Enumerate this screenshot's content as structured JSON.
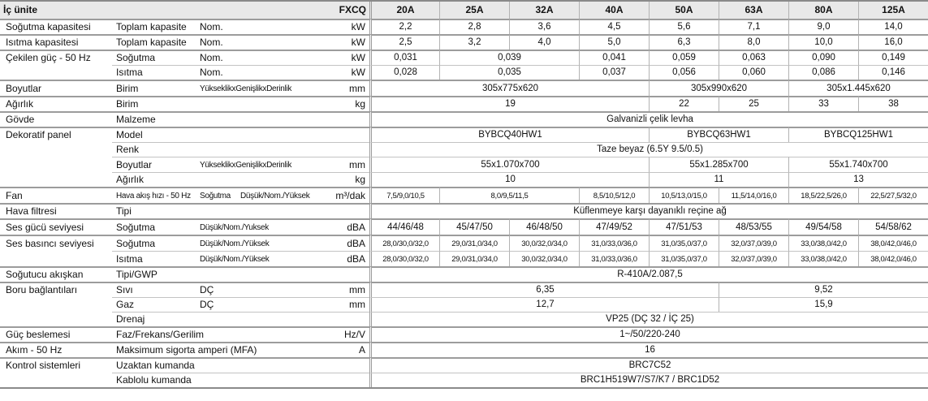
{
  "header": {
    "title": "İç ünite",
    "series": "FXCQ",
    "columns": [
      "20A",
      "25A",
      "32A",
      "40A",
      "50A",
      "63A",
      "80A",
      "125A"
    ]
  },
  "colors": {
    "header_bg": "#e9e9e9",
    "border_light": "#b3b3b3",
    "border_group": "#9c9c9c",
    "border_outer": "#8a8a8a"
  },
  "rows": [
    {
      "cat": "Soğutma kapasitesi",
      "sub": "Toplam kapasite",
      "qual": "Nom.",
      "qual2": "",
      "unit": "kW",
      "sep": "group",
      "tight": false,
      "cells": [
        {
          "t": "2,2",
          "s": 1
        },
        {
          "t": "2,8",
          "s": 1
        },
        {
          "t": "3,6",
          "s": 1
        },
        {
          "t": "4,5",
          "s": 1
        },
        {
          "t": "5,6",
          "s": 1
        },
        {
          "t": "7,1",
          "s": 1
        },
        {
          "t": "9,0",
          "s": 1
        },
        {
          "t": "14,0",
          "s": 1
        }
      ]
    },
    {
      "cat": "Isıtma kapasitesi",
      "sub": "Toplam kapasite",
      "qual": "Nom.",
      "qual2": "",
      "unit": "kW",
      "sep": "group",
      "tight": false,
      "cells": [
        {
          "t": "2,5",
          "s": 1
        },
        {
          "t": "3,2",
          "s": 1
        },
        {
          "t": "4,0",
          "s": 1
        },
        {
          "t": "5,0",
          "s": 1
        },
        {
          "t": "6,3",
          "s": 1
        },
        {
          "t": "8,0",
          "s": 1
        },
        {
          "t": "10,0",
          "s": 1
        },
        {
          "t": "16,0",
          "s": 1
        }
      ]
    },
    {
      "cat": "Çekilen güç - 50 Hz",
      "sub": "Soğutma",
      "qual": "Nom.",
      "qual2": "",
      "unit": "kW",
      "sep": "group",
      "tight": false,
      "cells": [
        {
          "t": "0,031",
          "s": 1
        },
        {
          "t": "0,039",
          "s": 2
        },
        {
          "t": "0,041",
          "s": 1
        },
        {
          "t": "0,059",
          "s": 1
        },
        {
          "t": "0,063",
          "s": 1
        },
        {
          "t": "0,090",
          "s": 1
        },
        {
          "t": "0,149",
          "s": 1
        }
      ]
    },
    {
      "cat": "",
      "sub": "Isıtma",
      "qual": "Nom.",
      "qual2": "",
      "unit": "kW",
      "sep": "sub",
      "tight": false,
      "cells": [
        {
          "t": "0,028",
          "s": 1
        },
        {
          "t": "0,035",
          "s": 2
        },
        {
          "t": "0,037",
          "s": 1
        },
        {
          "t": "0,056",
          "s": 1
        },
        {
          "t": "0,060",
          "s": 1
        },
        {
          "t": "0,086",
          "s": 1
        },
        {
          "t": "0,146",
          "s": 1
        }
      ]
    },
    {
      "cat": "Boyutlar",
      "sub": "Birim",
      "qual": "YükseklikxGenişlikxDerinlik",
      "qual2": "",
      "unit": "mm",
      "sep": "group",
      "tight": false,
      "cells": [
        {
          "t": "305x775x620",
          "s": 4
        },
        {
          "t": "305x990x620",
          "s": 2
        },
        {
          "t": "305x1.445x620",
          "s": 2
        }
      ]
    },
    {
      "cat": "Ağırlık",
      "sub": "Birim",
      "qual": "",
      "qual2": "",
      "unit": "kg",
      "sep": "group",
      "tight": false,
      "cells": [
        {
          "t": "19",
          "s": 4
        },
        {
          "t": "22",
          "s": 1
        },
        {
          "t": "25",
          "s": 1
        },
        {
          "t": "33",
          "s": 1
        },
        {
          "t": "38",
          "s": 1
        }
      ]
    },
    {
      "cat": "Gövde",
      "sub": "Malzeme",
      "qual": "",
      "qual2": "",
      "unit": "",
      "sep": "group",
      "tight": false,
      "cells": [
        {
          "t": "Galvanizli çelik levha",
          "s": 8
        }
      ]
    },
    {
      "cat": "Dekoratif panel",
      "sub": "Model",
      "qual": "",
      "qual2": "",
      "unit": "",
      "sep": "group",
      "tight": false,
      "cells": [
        {
          "t": "BYBCQ40HW1",
          "s": 4
        },
        {
          "t": "BYBCQ63HW1",
          "s": 2
        },
        {
          "t": "BYBCQ125HW1",
          "s": 2
        }
      ]
    },
    {
      "cat": "",
      "sub": "Renk",
      "qual": "",
      "qual2": "",
      "unit": "",
      "sep": "sub",
      "tight": false,
      "cells": [
        {
          "t": "Taze beyaz (6.5Y 9.5/0.5)",
          "s": 8
        }
      ]
    },
    {
      "cat": "",
      "sub": "Boyutlar",
      "qual": "YükseklikxGenişlikxDerinlik",
      "qual2": "",
      "unit": "mm",
      "sep": "sub",
      "tight": false,
      "cells": [
        {
          "t": "55x1.070x700",
          "s": 4
        },
        {
          "t": "55x1.285x700",
          "s": 2
        },
        {
          "t": "55x1.740x700",
          "s": 2
        }
      ]
    },
    {
      "cat": "",
      "sub": "Ağırlık",
      "qual": "",
      "qual2": "",
      "unit": "kg",
      "sep": "sub",
      "tight": false,
      "cells": [
        {
          "t": "10",
          "s": 4
        },
        {
          "t": "11",
          "s": 2
        },
        {
          "t": "13",
          "s": 2
        }
      ]
    },
    {
      "cat": "Fan",
      "sub": "Hava akış hızı - 50 Hz",
      "qual": "Soğutma",
      "qual2": "Düşük/Nom./Yüksek",
      "unit": "m³/dak",
      "sep": "group",
      "tight": true,
      "cells": [
        {
          "t": "7,5/9,0/10,5",
          "s": 1
        },
        {
          "t": "8,0/9,5/11,5",
          "s": 2
        },
        {
          "t": "8,5/10,5/12,0",
          "s": 1
        },
        {
          "t": "10,5/13,0/15,0",
          "s": 1
        },
        {
          "t": "11,5/14,0/16,0",
          "s": 1
        },
        {
          "t": "18,5/22,5/26,0",
          "s": 1
        },
        {
          "t": "22,5/27,5/32,0",
          "s": 1
        }
      ]
    },
    {
      "cat": "Hava filtresi",
      "sub": "Tipi",
      "qual": "",
      "qual2": "",
      "unit": "",
      "sep": "group",
      "tight": false,
      "cells": [
        {
          "t": "Küflenmeye karşı dayanıklı reçine ağ",
          "s": 8
        }
      ]
    },
    {
      "cat": "Ses gücü seviyesi",
      "sub": "Soğutma",
      "qual": "Düşük/Nom./Yuksek",
      "qual2": "",
      "unit": "dBA",
      "sep": "group",
      "tight": false,
      "cells": [
        {
          "t": "44/46/48",
          "s": 1
        },
        {
          "t": "45/47/50",
          "s": 1
        },
        {
          "t": "46/48/50",
          "s": 1
        },
        {
          "t": "47/49/52",
          "s": 1
        },
        {
          "t": "47/51/53",
          "s": 1
        },
        {
          "t": "48/53/55",
          "s": 1
        },
        {
          "t": "49/54/58",
          "s": 1
        },
        {
          "t": "54/58/62",
          "s": 1
        }
      ]
    },
    {
      "cat": "Ses basıncı seviyesi",
      "sub": "Soğutma",
      "qual": "Düşük/Nom./Yüksek",
      "qual2": "",
      "unit": "dBA",
      "sep": "group",
      "tight": true,
      "cells": [
        {
          "t": "28,0/30,0/32,0",
          "s": 1
        },
        {
          "t": "29,0/31,0/34,0",
          "s": 1
        },
        {
          "t": "30,0/32,0/34,0",
          "s": 1
        },
        {
          "t": "31,0/33,0/36,0",
          "s": 1
        },
        {
          "t": "31,0/35,0/37,0",
          "s": 1
        },
        {
          "t": "32,0/37,0/39,0",
          "s": 1
        },
        {
          "t": "33,0/38,0/42,0",
          "s": 1
        },
        {
          "t": "38,0/42,0/46,0",
          "s": 1
        }
      ]
    },
    {
      "cat": "",
      "sub": "Isıtma",
      "qual": "Düşük/Nom./Yüksek",
      "qual2": "",
      "unit": "dBA",
      "sep": "sub",
      "tight": true,
      "cells": [
        {
          "t": "28,0/30,0/32,0",
          "s": 1
        },
        {
          "t": "29,0/31,0/34,0",
          "s": 1
        },
        {
          "t": "30,0/32,0/34,0",
          "s": 1
        },
        {
          "t": "31,0/33,0/36,0",
          "s": 1
        },
        {
          "t": "31,0/35,0/37,0",
          "s": 1
        },
        {
          "t": "32,0/37,0/39,0",
          "s": 1
        },
        {
          "t": "33,0/38,0/42,0",
          "s": 1
        },
        {
          "t": "38,0/42,0/46,0",
          "s": 1
        }
      ]
    },
    {
      "cat": "Soğutucu akışkan",
      "sub": "Tipi/GWP",
      "qual": "",
      "qual2": "",
      "unit": "",
      "sep": "group",
      "tight": false,
      "cells": [
        {
          "t": "R-410A/2.087,5",
          "s": 8
        }
      ]
    },
    {
      "cat": "Boru bağlantıları",
      "sub": "Sıvı",
      "qual": "DÇ",
      "qual2": "",
      "unit": "mm",
      "sep": "group",
      "tight": false,
      "cells": [
        {
          "t": "6,35",
          "s": 5
        },
        {
          "t": "9,52",
          "s": 3
        }
      ]
    },
    {
      "cat": "",
      "sub": "Gaz",
      "qual": "DÇ",
      "qual2": "",
      "unit": "mm",
      "sep": "sub",
      "tight": false,
      "cells": [
        {
          "t": "12,7",
          "s": 5
        },
        {
          "t": "15,9",
          "s": 3
        }
      ]
    },
    {
      "cat": "",
      "sub": "Drenaj",
      "qual": "",
      "qual2": "",
      "unit": "",
      "sep": "sub",
      "tight": false,
      "cells": [
        {
          "t": "VP25 (DÇ 32 / İÇ 25)",
          "s": 8
        }
      ]
    },
    {
      "cat": "Güç beslemesi",
      "sub": "Faz/Frekans/Gerilim",
      "qual": "",
      "qual2": "",
      "unit": "Hz/V",
      "sep": "group",
      "tight": false,
      "cells": [
        {
          "t": "1~/50/220-240",
          "s": 8
        }
      ]
    },
    {
      "cat": "Akım - 50 Hz",
      "sub": "Maksimum sigorta amperi (MFA)",
      "qual": "",
      "qual2": "",
      "unit": "A",
      "sep": "group",
      "tight": false,
      "cells": [
        {
          "t": "16",
          "s": 8
        }
      ]
    },
    {
      "cat": "Kontrol sistemleri",
      "sub": "Uzaktan kumanda",
      "qual": "",
      "qual2": "",
      "unit": "",
      "sep": "group",
      "tight": false,
      "cells": [
        {
          "t": "BRC7C52",
          "s": 8
        }
      ]
    },
    {
      "cat": "",
      "sub": "Kablolu kumanda",
      "qual": "",
      "qual2": "",
      "unit": "",
      "sep": "sub",
      "tight": false,
      "cells": [
        {
          "t": "BRC1H519W7/S7/K7 / BRC1D52",
          "s": 8
        }
      ]
    }
  ]
}
